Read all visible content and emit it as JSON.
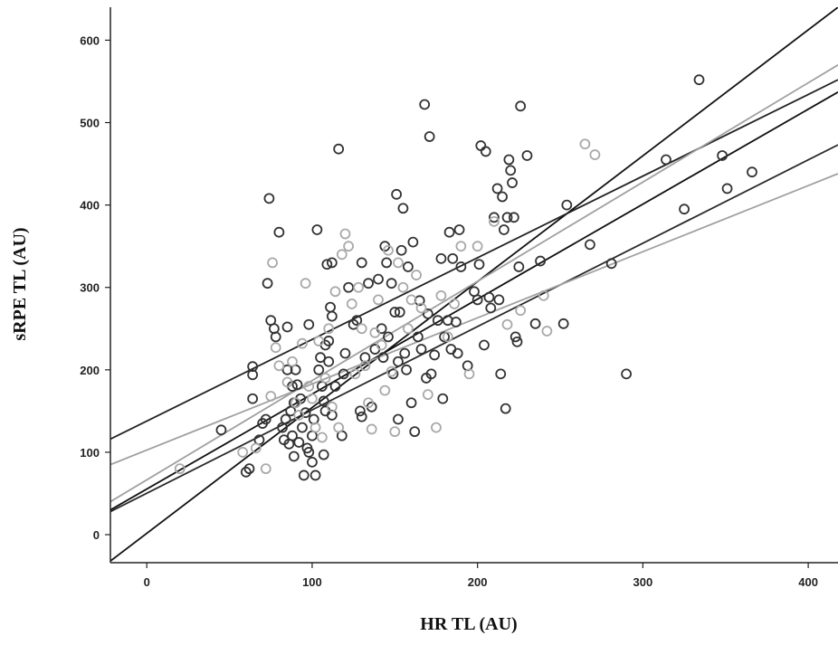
{
  "chart_data": {
    "type": "scatter",
    "title": "",
    "xlabel": "HR TL (AU)",
    "ylabel": "sRPE TL (AU)",
    "xlim": [
      -22,
      418
    ],
    "ylim": [
      -34,
      640
    ],
    "xticks": [
      0,
      100,
      200,
      300,
      400
    ],
    "yticks": [
      0,
      100,
      200,
      300,
      400,
      500,
      600
    ],
    "grid": false,
    "legend": "none",
    "series": [
      {
        "color": "#333333",
        "points": [
          [
            45,
            127
          ],
          [
            60,
            76
          ],
          [
            62,
            80
          ],
          [
            64,
            204
          ],
          [
            64,
            194
          ],
          [
            64,
            165
          ],
          [
            68,
            115
          ],
          [
            70,
            135
          ],
          [
            72,
            140
          ],
          [
            73,
            305
          ],
          [
            74,
            408
          ],
          [
            75,
            260
          ],
          [
            77,
            250
          ],
          [
            78,
            240
          ],
          [
            80,
            367
          ],
          [
            82,
            130
          ],
          [
            83,
            115
          ],
          [
            84,
            140
          ],
          [
            85,
            200
          ],
          [
            85,
            252
          ],
          [
            86,
            110
          ],
          [
            87,
            150
          ],
          [
            88,
            180
          ],
          [
            88,
            120
          ],
          [
            89,
            160
          ],
          [
            89,
            95
          ],
          [
            90,
            200
          ],
          [
            91,
            182
          ],
          [
            92,
            112
          ],
          [
            93,
            165
          ],
          [
            94,
            130
          ],
          [
            95,
            72
          ],
          [
            96,
            148
          ],
          [
            97,
            105
          ],
          [
            98,
            255
          ],
          [
            98,
            100
          ],
          [
            100,
            120
          ],
          [
            100,
            88
          ],
          [
            101,
            140
          ],
          [
            102,
            72
          ],
          [
            103,
            370
          ],
          [
            104,
            200
          ],
          [
            105,
            215
          ],
          [
            106,
            180
          ],
          [
            107,
            162
          ],
          [
            107,
            97
          ],
          [
            108,
            150
          ],
          [
            108,
            230
          ],
          [
            109,
            328
          ],
          [
            110,
            235
          ],
          [
            110,
            210
          ],
          [
            111,
            276
          ],
          [
            112,
            145
          ],
          [
            112,
            265
          ],
          [
            112,
            330
          ],
          [
            114,
            180
          ],
          [
            116,
            468
          ],
          [
            118,
            120
          ],
          [
            119,
            195
          ],
          [
            120,
            220
          ],
          [
            122,
            300
          ],
          [
            125,
            255
          ],
          [
            127,
            260
          ],
          [
            129,
            150
          ],
          [
            130,
            330
          ],
          [
            130,
            143
          ],
          [
            132,
            215
          ],
          [
            134,
            305
          ],
          [
            136,
            155
          ],
          [
            138,
            225
          ],
          [
            140,
            310
          ],
          [
            142,
            250
          ],
          [
            143,
            215
          ],
          [
            144,
            350
          ],
          [
            145,
            330
          ],
          [
            146,
            240
          ],
          [
            148,
            305
          ],
          [
            149,
            195
          ],
          [
            150,
            270
          ],
          [
            151,
            413
          ],
          [
            152,
            140
          ],
          [
            152,
            210
          ],
          [
            153,
            270
          ],
          [
            154,
            345
          ],
          [
            155,
            396
          ],
          [
            156,
            220
          ],
          [
            157,
            200
          ],
          [
            158,
            325
          ],
          [
            160,
            160
          ],
          [
            161,
            355
          ],
          [
            162,
            125
          ],
          [
            164,
            240
          ],
          [
            165,
            284
          ],
          [
            166,
            225
          ],
          [
            168,
            522
          ],
          [
            169,
            190
          ],
          [
            170,
            268
          ],
          [
            171,
            483
          ],
          [
            172,
            195
          ],
          [
            174,
            218
          ],
          [
            176,
            260
          ],
          [
            178,
            335
          ],
          [
            179,
            165
          ],
          [
            180,
            240
          ],
          [
            182,
            260
          ],
          [
            183,
            367
          ],
          [
            184,
            225
          ],
          [
            185,
            335
          ],
          [
            187,
            258
          ],
          [
            188,
            220
          ],
          [
            189,
            370
          ],
          [
            190,
            325
          ],
          [
            194,
            205
          ],
          [
            198,
            295
          ],
          [
            200,
            285
          ],
          [
            201,
            328
          ],
          [
            202,
            472
          ],
          [
            204,
            230
          ],
          [
            205,
            465
          ],
          [
            207,
            288
          ],
          [
            208,
            275
          ],
          [
            210,
            385
          ],
          [
            212,
            420
          ],
          [
            213,
            285
          ],
          [
            214,
            195
          ],
          [
            215,
            410
          ],
          [
            216,
            370
          ],
          [
            217,
            153
          ],
          [
            218,
            385
          ],
          [
            219,
            455
          ],
          [
            220,
            442
          ],
          [
            221,
            427
          ],
          [
            222,
            385
          ],
          [
            223,
            240
          ],
          [
            224,
            234
          ],
          [
            225,
            325
          ],
          [
            226,
            520
          ],
          [
            230,
            460
          ],
          [
            235,
            256
          ],
          [
            238,
            332
          ],
          [
            252,
            256
          ],
          [
            254,
            400
          ],
          [
            268,
            352
          ],
          [
            281,
            329
          ],
          [
            290,
            195
          ],
          [
            314,
            455
          ],
          [
            325,
            395
          ],
          [
            334,
            552
          ],
          [
            348,
            460
          ],
          [
            351,
            420
          ],
          [
            366,
            440
          ]
        ]
      },
      {
        "color": "#a9a9a9",
        "points": [
          [
            20,
            80
          ],
          [
            58,
            100
          ],
          [
            66,
            105
          ],
          [
            72,
            80
          ],
          [
            75,
            168
          ],
          [
            76,
            330
          ],
          [
            78,
            227
          ],
          [
            80,
            205
          ],
          [
            85,
            185
          ],
          [
            88,
            210
          ],
          [
            90,
            160
          ],
          [
            92,
            145
          ],
          [
            94,
            232
          ],
          [
            96,
            305
          ],
          [
            98,
            180
          ],
          [
            100,
            165
          ],
          [
            102,
            130
          ],
          [
            104,
            235
          ],
          [
            106,
            118
          ],
          [
            108,
            190
          ],
          [
            110,
            250
          ],
          [
            112,
            155
          ],
          [
            114,
            295
          ],
          [
            116,
            130
          ],
          [
            118,
            340
          ],
          [
            120,
            365
          ],
          [
            122,
            350
          ],
          [
            124,
            280
          ],
          [
            126,
            195
          ],
          [
            128,
            300
          ],
          [
            130,
            250
          ],
          [
            132,
            205
          ],
          [
            134,
            160
          ],
          [
            136,
            128
          ],
          [
            138,
            245
          ],
          [
            140,
            285
          ],
          [
            142,
            230
          ],
          [
            144,
            175
          ],
          [
            146,
            345
          ],
          [
            148,
            198
          ],
          [
            150,
            125
          ],
          [
            152,
            330
          ],
          [
            155,
            300
          ],
          [
            158,
            250
          ],
          [
            160,
            285
          ],
          [
            163,
            315
          ],
          [
            166,
            275
          ],
          [
            170,
            170
          ],
          [
            175,
            130
          ],
          [
            178,
            290
          ],
          [
            182,
            240
          ],
          [
            186,
            280
          ],
          [
            190,
            350
          ],
          [
            195,
            195
          ],
          [
            200,
            350
          ],
          [
            210,
            380
          ],
          [
            218,
            255
          ],
          [
            226,
            272
          ],
          [
            240,
            290
          ],
          [
            242,
            247
          ],
          [
            265,
            474
          ],
          [
            271,
            461
          ]
        ]
      }
    ],
    "fit_lines": [
      {
        "color": "#111111",
        "x": [
          -22,
          418
        ],
        "y": [
          -32,
          640
        ]
      },
      {
        "color": "#222222",
        "x": [
          -22,
          418
        ],
        "y": [
          116,
          552
        ]
      },
      {
        "color": "#111111",
        "x": [
          -22,
          418
        ],
        "y": [
          30,
          537
        ]
      },
      {
        "color": "#2a2a2a",
        "x": [
          -22,
          418
        ],
        "y": [
          28,
          473
        ]
      },
      {
        "color": "#a0a0a0",
        "x": [
          -22,
          418
        ],
        "y": [
          40,
          570
        ]
      },
      {
        "color": "#a0a0a0",
        "x": [
          -22,
          418
        ],
        "y": [
          85,
          438
        ]
      }
    ]
  }
}
